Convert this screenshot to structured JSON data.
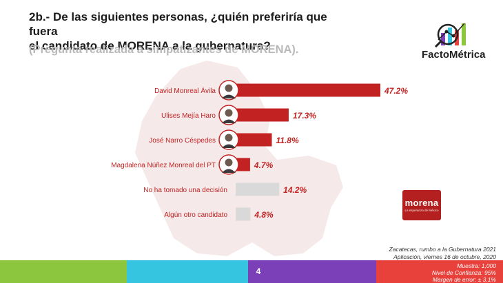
{
  "header": {
    "title_line1": "2b.- De las siguientes personas, ¿quién preferiría que fuera",
    "title_line2": "el candidato de MORENA a la gubernatura?",
    "subtitle": "(Pregunta realizada a simpatizantes de MORENA)."
  },
  "brand": {
    "name": "FactoMétrica"
  },
  "party_logo": {
    "name": "morena",
    "tagline": "La esperanza de México",
    "color": "#b4201f"
  },
  "chart_data": {
    "type": "bar",
    "orientation": "horizontal",
    "categories": [
      "David Monreal Ávila",
      "Ulises Mejía Haro",
      "José Narro Céspedes",
      "Magdalena Núñez Monreal del PT",
      "No ha tomado una decisión",
      "Algún otro candidato"
    ],
    "values": [
      47.2,
      17.3,
      11.8,
      4.7,
      14.2,
      4.8
    ],
    "value_labels": [
      "47.2%",
      "17.3%",
      "11.8%",
      "4.7%",
      "14.2%",
      "4.8%"
    ],
    "has_photo": [
      true,
      true,
      true,
      true,
      false,
      false
    ],
    "bar_colors": [
      "#c22222",
      "#c22222",
      "#c22222",
      "#c22222",
      "#d9d9d9",
      "#d9d9d9"
    ],
    "label_colors": [
      "#c22222",
      "#c22222",
      "#c22222",
      "#c22222",
      "#c22222",
      "#c22222"
    ],
    "value_label_color": "#c22222",
    "xlim": [
      0,
      50
    ],
    "grid": false
  },
  "footnote": {
    "line1": "Zacatecas, rumbo a la Gubernatura 2021",
    "line2": "Aplicación, viernes 16 de octubre, 2020",
    "line3": "Muestra:  1,000",
    "line4": "Nivel de Confianza: 95%",
    "line5": "Margen de error: ± 3.1%"
  },
  "footer": {
    "page_number": "4",
    "colors": [
      "#8cc63e",
      "#35c5e0",
      "#7b3fb8",
      "#e8413c"
    ]
  }
}
